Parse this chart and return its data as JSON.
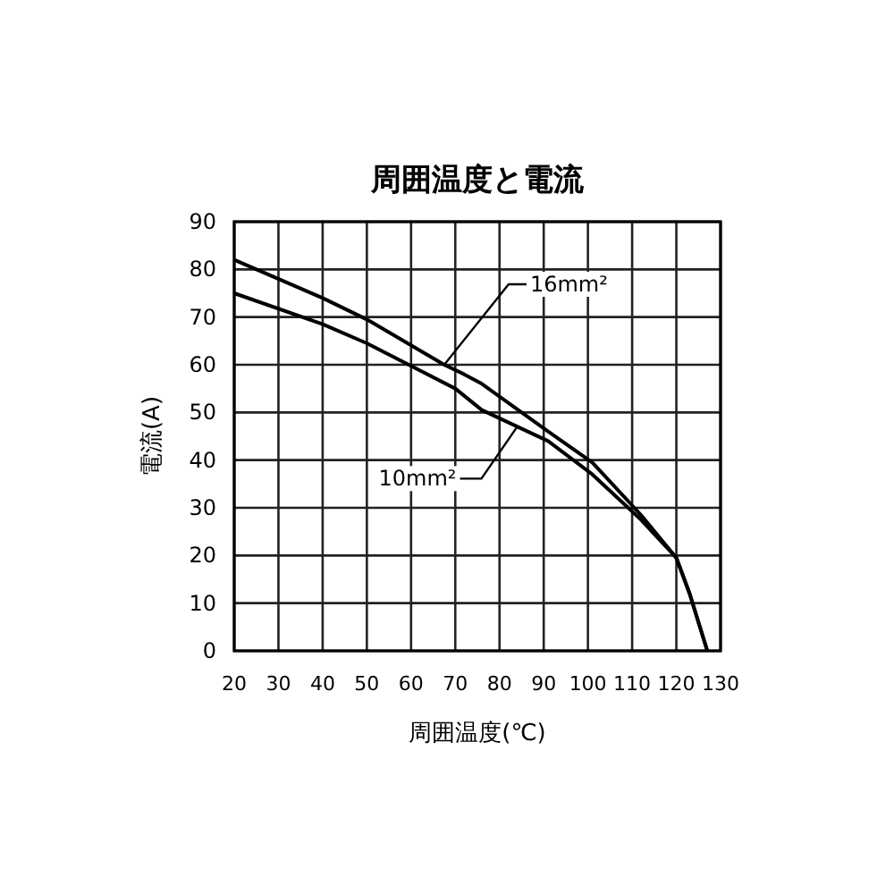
{
  "chart_data": {
    "type": "line",
    "title": "周囲温度と電流",
    "xlabel": "周囲温度(℃)",
    "ylabel": "電流(A)",
    "xlim": [
      20,
      130
    ],
    "xticks": [
      20,
      30,
      40,
      50,
      60,
      70,
      80,
      90,
      100,
      110,
      120,
      130
    ],
    "ylim": [
      0,
      90
    ],
    "yticks": [
      0,
      10,
      20,
      30,
      40,
      50,
      60,
      70,
      80,
      90
    ],
    "grid": true,
    "marker": "none",
    "line_style": "solid",
    "series": [
      {
        "color": "#000000",
        "x": [
          20,
          40,
          50,
          67.5,
          72,
          76,
          91,
          101,
          112,
          120,
          123,
          127
        ],
        "values": [
          82,
          74,
          69.5,
          60,
          58,
          56,
          46,
          39.5,
          28.5,
          19.5,
          12,
          0
        ]
      },
      {
        "color": "#000000",
        "x": [
          20,
          40,
          50,
          70,
          76,
          91,
          101,
          112,
          120,
          123,
          127
        ],
        "values": [
          75,
          68.5,
          64.5,
          55,
          50.5,
          44,
          37,
          27.5,
          19.5,
          12,
          0
        ]
      }
    ],
    "annotations": [
      {
        "text": "16mm²",
        "x": 67.5,
        "y": 60
      },
      {
        "text": "10mm²",
        "x": 84,
        "y": 47
      }
    ]
  }
}
